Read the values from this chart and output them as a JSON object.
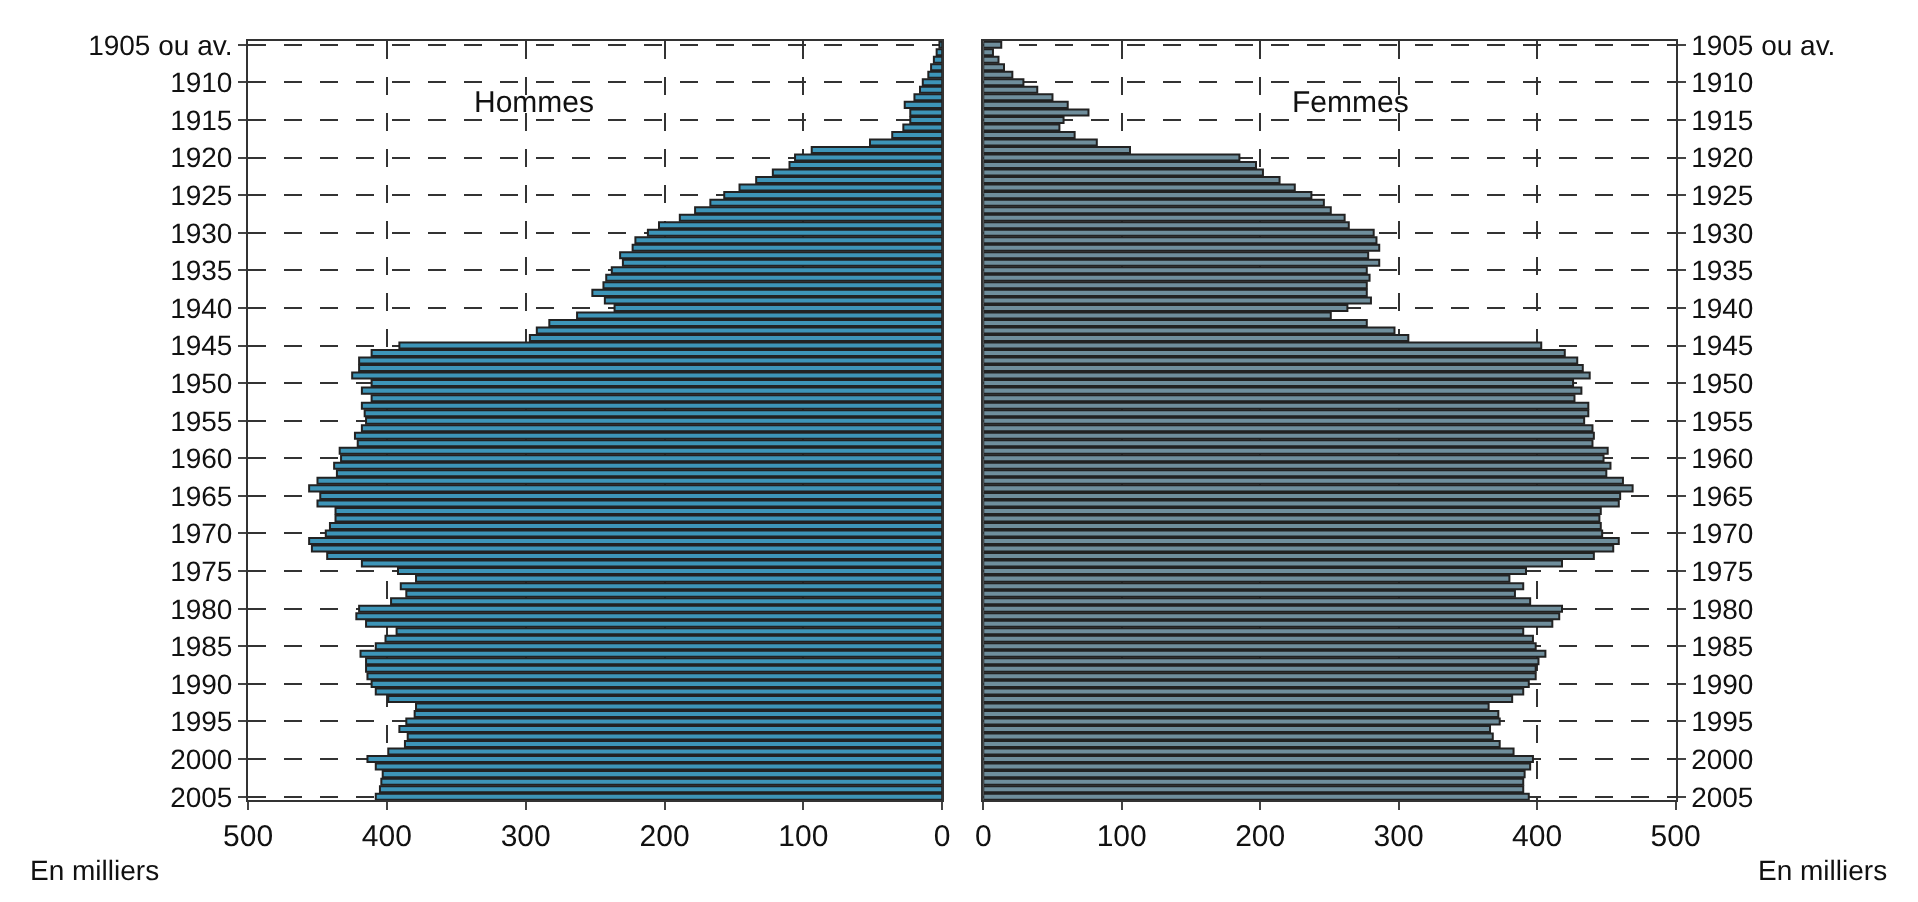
{
  "chart_data": [
    {
      "type": "bar",
      "orientation": "horizontal",
      "title": "Hommes",
      "xlabel": "En milliers",
      "categories": [
        "1905 ou av.",
        null,
        null,
        null,
        null,
        "1910",
        null,
        null,
        null,
        null,
        "1915",
        null,
        null,
        null,
        null,
        "1920",
        null,
        null,
        null,
        null,
        "1925",
        null,
        null,
        null,
        null,
        "1930",
        null,
        null,
        null,
        null,
        "1935",
        null,
        null,
        null,
        null,
        "1940",
        null,
        null,
        null,
        null,
        "1945",
        null,
        null,
        null,
        null,
        "1950",
        null,
        null,
        null,
        null,
        "1955",
        null,
        null,
        null,
        null,
        "1960",
        null,
        null,
        null,
        null,
        "1965",
        null,
        null,
        null,
        null,
        "1970",
        null,
        null,
        null,
        null,
        "1975",
        null,
        null,
        null,
        null,
        "1980",
        null,
        null,
        null,
        null,
        "1985",
        null,
        null,
        null,
        null,
        "1990",
        null,
        null,
        null,
        null,
        "1995",
        null,
        null,
        null,
        null,
        "2000",
        null,
        null,
        null,
        null,
        "2005"
      ],
      "values": [
        2,
        4,
        6,
        8,
        10,
        14,
        16,
        20,
        27,
        23,
        23,
        28,
        36,
        52,
        94,
        106,
        110,
        122,
        134,
        146,
        157,
        167,
        178,
        189,
        204,
        212,
        221,
        223,
        232,
        230,
        238,
        242,
        244,
        252,
        243,
        236,
        263,
        283,
        292,
        297,
        391,
        411,
        420,
        420,
        425,
        411,
        418,
        411,
        418,
        416,
        415,
        418,
        423,
        421,
        434,
        433,
        438,
        436,
        450,
        456,
        448,
        450,
        437,
        437,
        441,
        444,
        456,
        454,
        443,
        418,
        392,
        379,
        390,
        386,
        397,
        420,
        422,
        415,
        393,
        401,
        408,
        419,
        415,
        415,
        414,
        411,
        408,
        399,
        379,
        380,
        386,
        391,
        385,
        387,
        399,
        414,
        408,
        403,
        404,
        405,
        408
      ],
      "color": "#3d95b8",
      "xlim": [
        500,
        0
      ],
      "xticks": [
        500,
        400,
        300,
        200,
        100,
        0
      ],
      "grid": true
    },
    {
      "type": "bar",
      "orientation": "horizontal",
      "title": "Femmes",
      "xlabel": "En milliers",
      "categories": [
        "1905 ou av.",
        null,
        null,
        null,
        null,
        "1910",
        null,
        null,
        null,
        null,
        "1915",
        null,
        null,
        null,
        null,
        "1920",
        null,
        null,
        null,
        null,
        "1925",
        null,
        null,
        null,
        null,
        "1930",
        null,
        null,
        null,
        null,
        "1935",
        null,
        null,
        null,
        null,
        "1940",
        null,
        null,
        null,
        null,
        "1945",
        null,
        null,
        null,
        null,
        "1950",
        null,
        null,
        null,
        null,
        "1955",
        null,
        null,
        null,
        null,
        "1960",
        null,
        null,
        null,
        null,
        "1965",
        null,
        null,
        null,
        null,
        "1970",
        null,
        null,
        null,
        null,
        "1975",
        null,
        null,
        null,
        null,
        "1980",
        null,
        null,
        null,
        null,
        "1985",
        null,
        null,
        null,
        null,
        "1990",
        null,
        null,
        null,
        null,
        "1995",
        null,
        null,
        null,
        null,
        "2000",
        null,
        null,
        null,
        null,
        "2005"
      ],
      "values": [
        13,
        7,
        11,
        15,
        21,
        29,
        39,
        50,
        61,
        76,
        58,
        55,
        66,
        82,
        106,
        185,
        197,
        202,
        214,
        225,
        237,
        246,
        251,
        261,
        264,
        282,
        284,
        286,
        278,
        286,
        277,
        279,
        277,
        277,
        280,
        263,
        251,
        277,
        297,
        307,
        403,
        420,
        429,
        433,
        438,
        426,
        432,
        427,
        437,
        437,
        434,
        440,
        441,
        440,
        451,
        448,
        453,
        450,
        462,
        469,
        460,
        459,
        446,
        445,
        446,
        447,
        459,
        455,
        441,
        418,
        392,
        380,
        390,
        384,
        395,
        418,
        416,
        411,
        390,
        397,
        399,
        406,
        401,
        399,
        399,
        394,
        390,
        382,
        365,
        372,
        373,
        366,
        368,
        373,
        383,
        397,
        395,
        391,
        390,
        390,
        394
      ],
      "color": "#6f8e9c",
      "xlim": [
        0,
        500
      ],
      "xticks": [
        0,
        100,
        200,
        300,
        400,
        500
      ],
      "grid": true
    }
  ]
}
